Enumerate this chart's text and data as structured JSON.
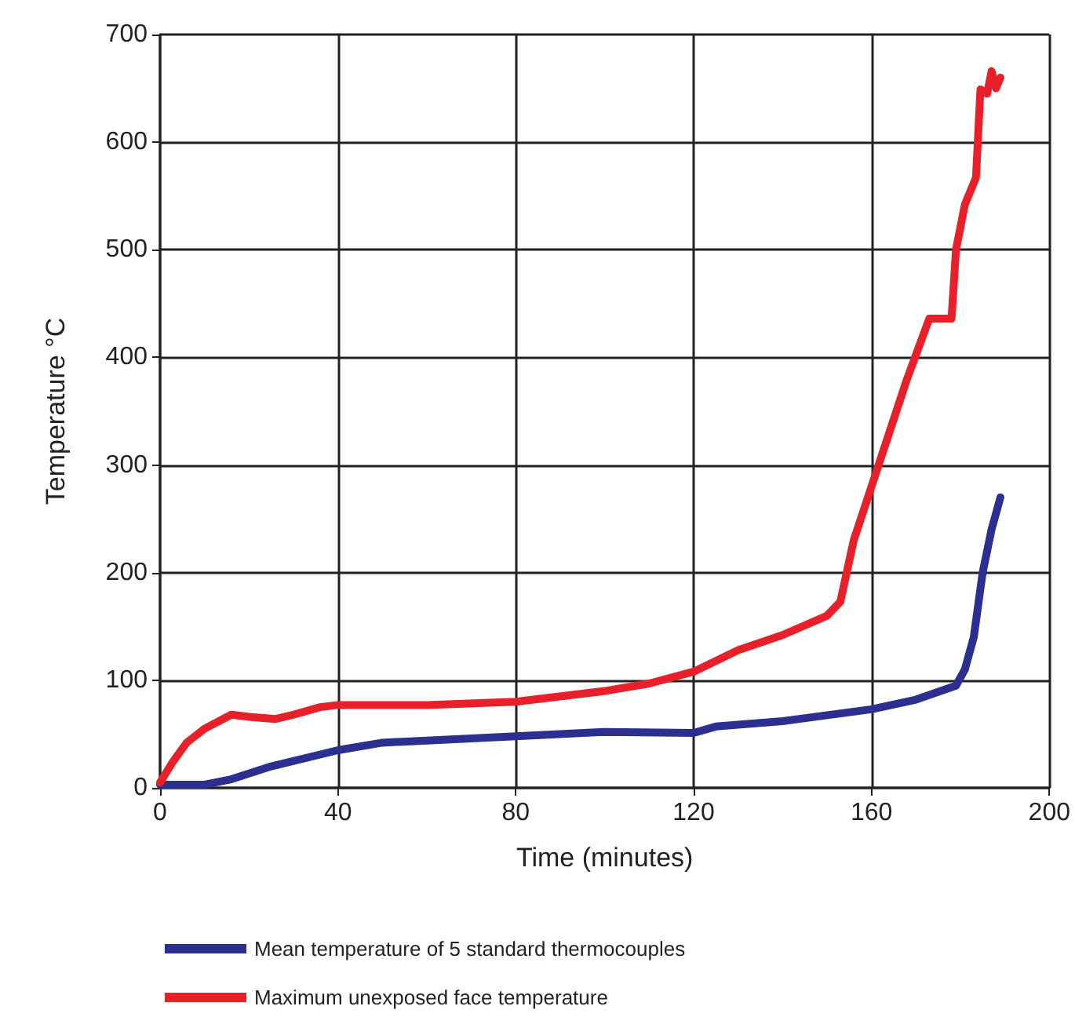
{
  "chart_data": {
    "type": "line",
    "xlabel": "Time (minutes)",
    "ylabel": "Temperature °C",
    "xlim": [
      0,
      200
    ],
    "xticks": [
      0,
      40,
      80,
      120,
      160,
      200
    ],
    "ylim": [
      0,
      700
    ],
    "yticks": [
      0,
      100,
      200,
      300,
      400,
      500,
      600,
      700
    ],
    "grid": true,
    "legend": "bottom",
    "marker": "none",
    "line_style": "solid",
    "series": [
      {
        "name": "Mean temperature of 5 standard thermocouples",
        "color": "#2b2f8f",
        "x": [
          0,
          10,
          16,
          25,
          40,
          50,
          80,
          100,
          120,
          125,
          140,
          160,
          170,
          179,
          181,
          183,
          185,
          187,
          189
        ],
        "values": [
          3,
          3,
          8,
          20,
          35,
          42,
          48,
          52,
          51,
          57,
          62,
          73,
          82,
          95,
          110,
          140,
          200,
          240,
          270
        ]
      },
      {
        "name": "Maximum unexposed face temperature",
        "color": "#e8202a",
        "x": [
          0,
          3,
          6,
          10,
          16,
          20,
          26,
          30,
          36,
          40,
          60,
          80,
          100,
          110,
          120,
          125,
          130,
          140,
          150,
          153,
          156,
          160,
          164,
          168,
          173,
          178,
          179,
          181,
          183.5,
          184.5,
          186,
          187,
          188,
          189
        ],
        "values": [
          5,
          25,
          42,
          55,
          68,
          66,
          64,
          68,
          75,
          77,
          77,
          80,
          90,
          97,
          108,
          118,
          128,
          142,
          160,
          173,
          230,
          280,
          330,
          380,
          436,
          436,
          500,
          542,
          567,
          649,
          645,
          666,
          650,
          660
        ]
      }
    ]
  }
}
